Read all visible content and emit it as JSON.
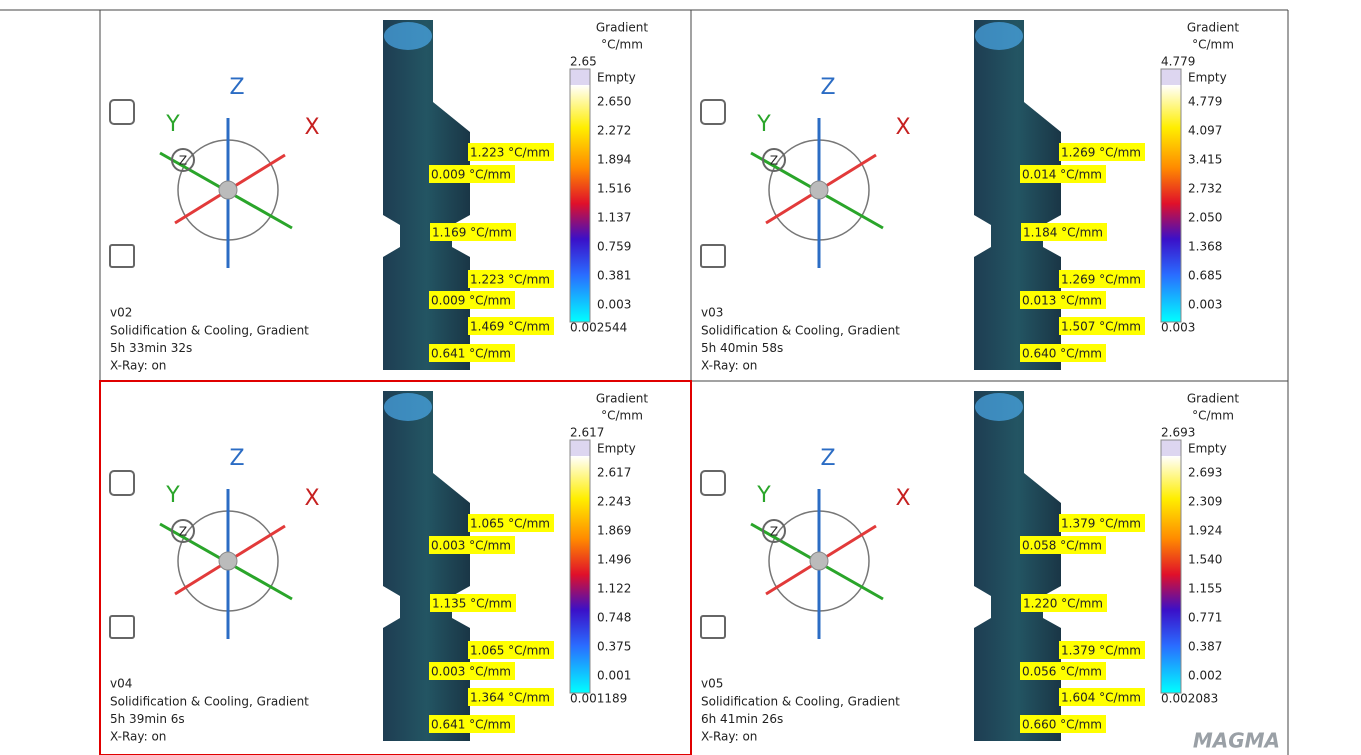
{
  "gizmo": {
    "x": "X",
    "y": "Y",
    "z": "Z"
  },
  "logo": "MAGMA",
  "panels": [
    {
      "name": "v02",
      "lines": [
        "Solidification & Cooling, Gradient",
        "5h 33min 32s",
        "X-Ray: on"
      ],
      "selected": false,
      "legend": {
        "title": "Gradient",
        "unit": "°C/mm",
        "max_label": "2.65",
        "empty": "Empty",
        "ticks": [
          "2.650",
          "2.272",
          "1.894",
          "1.516",
          "1.137",
          "0.759",
          "0.381",
          "0.003"
        ],
        "min_label": "0.002544"
      },
      "probes": [
        "1.223 °C/mm",
        "0.009 °C/mm",
        "1.169 °C/mm",
        "1.223 °C/mm",
        "0.009 °C/mm",
        "1.469 °C/mm",
        "0.641 °C/mm"
      ]
    },
    {
      "name": "v03",
      "lines": [
        "Solidification & Cooling, Gradient",
        "5h 40min 58s",
        "X-Ray: on"
      ],
      "selected": false,
      "legend": {
        "title": "Gradient",
        "unit": "°C/mm",
        "max_label": "4.779",
        "empty": "Empty",
        "ticks": [
          "4.779",
          "4.097",
          "3.415",
          "2.732",
          "2.050",
          "1.368",
          "0.685",
          "0.003"
        ],
        "min_label": "0.003"
      },
      "probes": [
        "1.269 °C/mm",
        "0.014 °C/mm",
        "1.184 °C/mm",
        "1.269 °C/mm",
        "0.013 °C/mm",
        "1.507 °C/mm",
        "0.640 °C/mm"
      ]
    },
    {
      "name": "v04",
      "lines": [
        "Solidification & Cooling, Gradient",
        "5h 39min 6s",
        "X-Ray: on"
      ],
      "selected": true,
      "legend": {
        "title": "Gradient",
        "unit": "°C/mm",
        "max_label": "2.617",
        "empty": "Empty",
        "ticks": [
          "2.617",
          "2.243",
          "1.869",
          "1.496",
          "1.122",
          "0.748",
          "0.375",
          "0.001"
        ],
        "min_label": "0.001189"
      },
      "probes": [
        "1.065 °C/mm",
        "0.003 °C/mm",
        "1.135 °C/mm",
        "1.065 °C/mm",
        "0.003 °C/mm",
        "1.364 °C/mm",
        "0.641 °C/mm"
      ]
    },
    {
      "name": "v05",
      "lines": [
        "Solidification & Cooling, Gradient",
        "6h 41min 26s",
        "X-Ray: on"
      ],
      "selected": false,
      "legend": {
        "title": "Gradient",
        "unit": "°C/mm",
        "max_label": "2.693",
        "empty": "Empty",
        "ticks": [
          "2.693",
          "2.309",
          "1.924",
          "1.540",
          "1.155",
          "0.771",
          "0.387",
          "0.002"
        ],
        "min_label": "0.002083"
      },
      "probes": [
        "1.379 °C/mm",
        "0.058 °C/mm",
        "1.220 °C/mm",
        "1.379 °C/mm",
        "0.056 °C/mm",
        "1.604 °C/mm",
        "0.660 °C/mm"
      ]
    }
  ]
}
